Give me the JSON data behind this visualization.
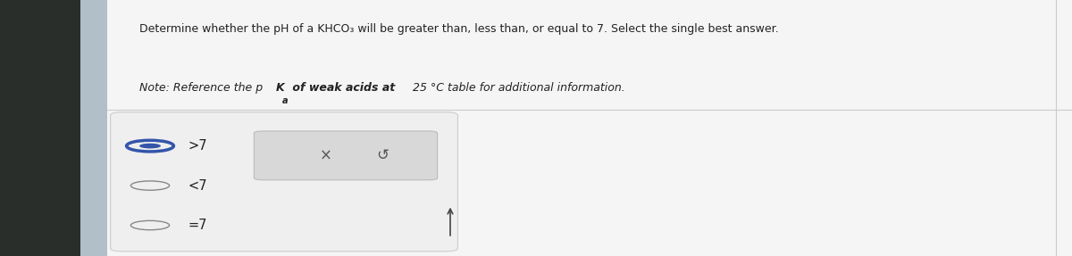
{
  "title_line1": "Determine whether the pH of a KHCO₃ will be greater than, less than, or equal to 7. Select the single best answer.",
  "note_part1": "Note: Reference the p",
  "note_K": "K",
  "note_sub": "a",
  "note_bold": " of weak acids at",
  "note_part2": " 25 °C table for additional information.",
  "options": [
    ">7",
    "<7",
    "=7"
  ],
  "x_symbol": "×",
  "undo_symbol": "↺",
  "overall_bg": "#f0f0f0",
  "main_bg": "#f5f5f5",
  "dark_sidebar": "#2a2e2a",
  "blue_strip": "#b0bfc8",
  "card_bg": "#efefef",
  "card_edge": "#cccccc",
  "sel_box_bg": "#d8d8d8",
  "sel_box_edge": "#bbbbbb",
  "selected_circle_color": "#3355aa",
  "unselected_circle_color": "#888888",
  "text_color": "#222222",
  "x_color": "#555555",
  "undo_color": "#555555",
  "cursor_color": "#444444",
  "right_line_color": "#cccccc",
  "title_fontsize": 9.0,
  "note_fontsize": 9.0,
  "option_fontsize": 10.5
}
